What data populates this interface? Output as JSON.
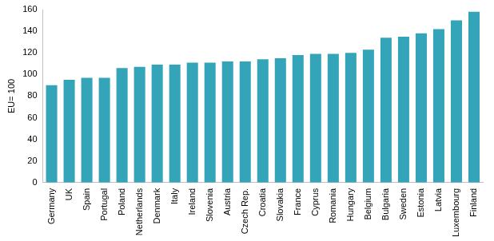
{
  "chart_data": {
    "type": "bar",
    "y_label": "EU= 100",
    "categories": [
      "Germany",
      "UK",
      "Spain",
      "Portugal",
      "Poland",
      "Netherlands",
      "Denmark",
      "Italy",
      "Ireland",
      "Slovenia",
      "Austria",
      "Czech Rep.",
      "Croatia",
      "Slovakia",
      "France",
      "Cyprus",
      "Romania",
      "Hungary",
      "Belgium",
      "Bulgaria",
      "Sweden",
      "Estonia",
      "Latvia",
      "Luxembourg",
      "Finland"
    ],
    "values": [
      90,
      95,
      97,
      97,
      106,
      107,
      109,
      109,
      111,
      111,
      112,
      112,
      114,
      115,
      118,
      119,
      119,
      120,
      123,
      134,
      135,
      138,
      142,
      150,
      158
    ],
    "color": "#34a4b9",
    "ylim": [
      0,
      160
    ],
    "yticks": [
      0,
      20,
      40,
      60,
      80,
      100,
      120,
      140,
      160
    ],
    "grid": false
  }
}
